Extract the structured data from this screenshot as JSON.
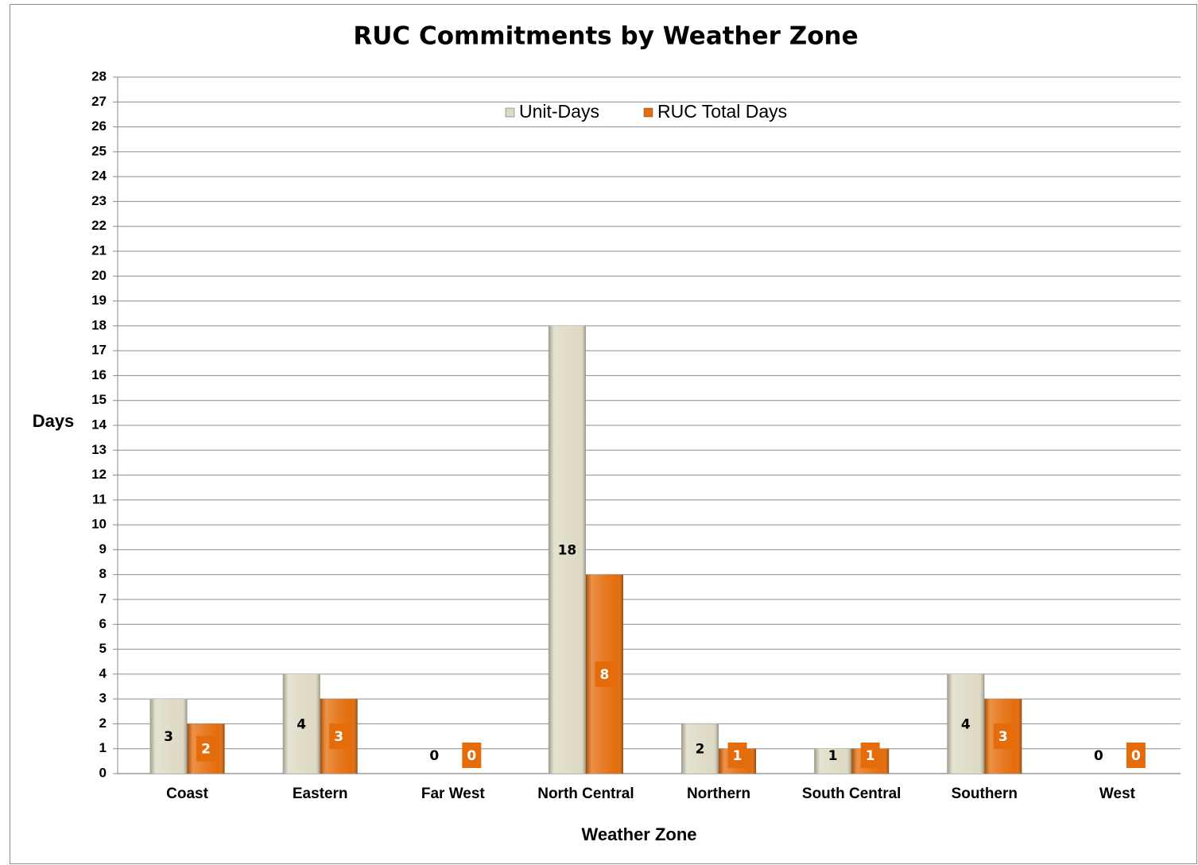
{
  "chart_data": {
    "type": "bar",
    "title": "RUC Commitments by Weather Zone",
    "x_label": "Weather Zone",
    "y_label": "Days",
    "categories": [
      "Coast",
      "Eastern",
      "Far West",
      "North Central",
      "Northern",
      "South Central",
      "Southern",
      "West"
    ],
    "series": [
      {
        "name": "Unit-Days",
        "color": "#ddd9c3",
        "values": [
          3,
          4,
          0,
          18,
          2,
          1,
          4,
          0
        ]
      },
      {
        "name": "RUC Total Days",
        "color": "#e46c0a",
        "values": [
          2,
          3,
          0,
          8,
          1,
          1,
          3,
          0
        ]
      }
    ],
    "ylim": [
      0,
      28
    ],
    "yticks": [
      0,
      1,
      2,
      3,
      4,
      5,
      6,
      7,
      8,
      9,
      10,
      11,
      12,
      13,
      14,
      15,
      16,
      17,
      18,
      19,
      20,
      21,
      22,
      23,
      24,
      25,
      26,
      27,
      28
    ],
    "grid": true,
    "legend": "top"
  }
}
